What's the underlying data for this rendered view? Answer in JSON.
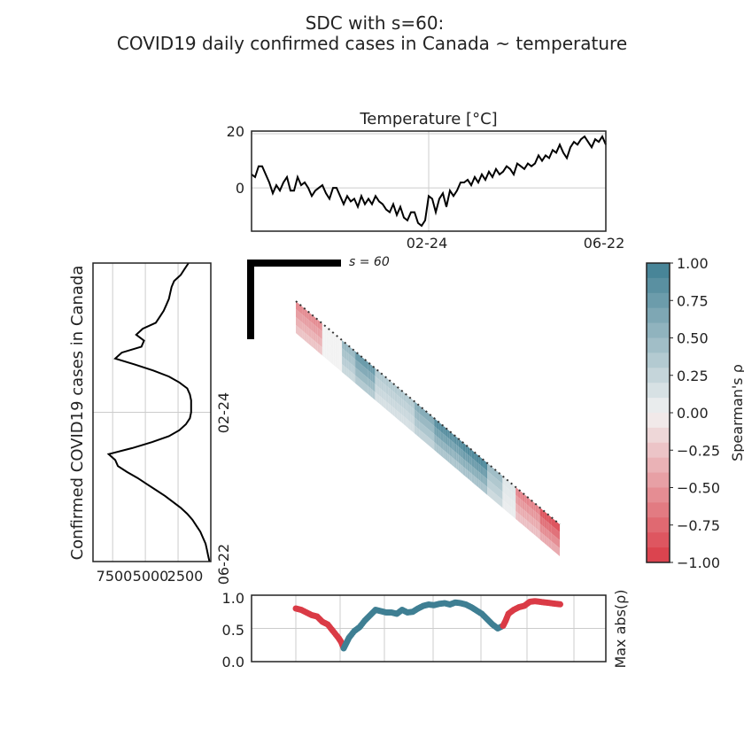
{
  "title_line1": "SDC with s=60:",
  "title_line2": "COVID19 daily confirmed cases in Canada ~ temperature",
  "colors": {
    "positive": "#3f7f93",
    "negative": "#da3b46",
    "neutral": "#f2f2f2",
    "line": "#000000",
    "grid": "#cccccc"
  },
  "s_label": "s = 60",
  "chart_data": [
    {
      "id": "temperature",
      "type": "line",
      "title": "Temperature [°C]",
      "ylim": [
        -16,
        21
      ],
      "yticks": [
        "20",
        "0"
      ],
      "ytick_values": [
        20,
        0
      ],
      "xticks": [
        "02-24",
        "06-22"
      ],
      "xtick_values": [
        0.5,
        1.0
      ],
      "x": [
        0,
        0.01,
        0.02,
        0.03,
        0.04,
        0.05,
        0.06,
        0.07,
        0.08,
        0.09,
        0.1,
        0.11,
        0.12,
        0.13,
        0.14,
        0.15,
        0.16,
        0.17,
        0.18,
        0.19,
        0.2,
        0.21,
        0.22,
        0.23,
        0.24,
        0.25,
        0.26,
        0.27,
        0.28,
        0.29,
        0.3,
        0.31,
        0.32,
        0.33,
        0.34,
        0.35,
        0.36,
        0.37,
        0.38,
        0.39,
        0.4,
        0.41,
        0.42,
        0.43,
        0.44,
        0.45,
        0.46,
        0.47,
        0.48,
        0.49,
        0.5,
        0.51,
        0.52,
        0.53,
        0.54,
        0.55,
        0.56,
        0.57,
        0.58,
        0.59,
        0.6,
        0.61,
        0.62,
        0.63,
        0.64,
        0.65,
        0.66,
        0.67,
        0.68,
        0.69,
        0.7,
        0.71,
        0.72,
        0.73,
        0.74,
        0.75,
        0.76,
        0.77,
        0.78,
        0.79,
        0.8,
        0.81,
        0.82,
        0.83,
        0.84,
        0.85,
        0.86,
        0.87,
        0.88,
        0.89,
        0.9,
        0.91,
        0.92,
        0.93,
        0.94,
        0.95,
        0.96,
        0.97,
        0.98,
        0.99,
        1.0
      ],
      "values": [
        5,
        4,
        8,
        8,
        5,
        2,
        -2,
        1,
        -1,
        2,
        4,
        -1,
        -1,
        4,
        1,
        2,
        0,
        -3,
        -1,
        0,
        1,
        -2,
        -4,
        0,
        0,
        -3,
        -6,
        -3,
        -5,
        -4,
        -7,
        -3,
        -6,
        -4,
        -6,
        -3,
        -5,
        -6,
        -8,
        -9,
        -6,
        -10,
        -7,
        -11,
        -12,
        -9,
        -9,
        -13,
        -14,
        -12,
        -3,
        -4,
        -9,
        -4,
        -2,
        -7,
        -1,
        -3,
        -1,
        2,
        2,
        3,
        1,
        4,
        2,
        5,
        3,
        6,
        4,
        7,
        5,
        6,
        8,
        7,
        5,
        9,
        8,
        7,
        9,
        8,
        9,
        12,
        10,
        12,
        11,
        14,
        13,
        16,
        13,
        11,
        15,
        17,
        16,
        18,
        19,
        17,
        15,
        18,
        17,
        19,
        16
      ],
      "series": [
        {
          "name": "",
          "color": "#000000"
        }
      ]
    },
    {
      "id": "cases",
      "type": "line",
      "orientation": "vertical",
      "ylabel": "Confirmed COVID19 cases in Canada",
      "xticks": [
        "7500",
        "5000",
        "2500"
      ],
      "xtick_values": [
        7500,
        5000,
        2500
      ],
      "xlim": [
        9000,
        0
      ],
      "yticks": [
        "02-24",
        "06-22"
      ],
      "t": [
        0,
        0.02,
        0.04,
        0.06,
        0.08,
        0.1,
        0.12,
        0.14,
        0.16,
        0.18,
        0.2,
        0.22,
        0.24,
        0.26,
        0.28,
        0.3,
        0.32,
        0.34,
        0.36,
        0.38,
        0.4,
        0.42,
        0.44,
        0.46,
        0.48,
        0.5,
        0.52,
        0.54,
        0.56,
        0.58,
        0.6,
        0.62,
        0.64,
        0.66,
        0.68,
        0.7,
        0.72,
        0.74,
        0.76,
        0.78,
        0.8,
        0.82,
        0.84,
        0.86,
        0.88,
        0.9,
        0.92,
        0.94,
        0.96,
        0.98,
        1.0
      ],
      "values": [
        1700,
        2000,
        2300,
        2800,
        3000,
        3100,
        3200,
        3400,
        3600,
        3900,
        4200,
        5200,
        5700,
        5100,
        5300,
        6800,
        7300,
        5800,
        4400,
        3200,
        2400,
        1800,
        1600,
        1500,
        1500,
        1500,
        1600,
        1900,
        2400,
        3200,
        4500,
        6000,
        7800,
        7300,
        7100,
        6400,
        5600,
        4900,
        4200,
        3500,
        2900,
        2300,
        1800,
        1400,
        1100,
        800,
        600,
        400,
        300,
        200,
        100
      ],
      "series": [
        {
          "name": "",
          "color": "#000000"
        }
      ]
    },
    {
      "id": "colorbar",
      "type": "colorbar",
      "label": "Spearman's ρ",
      "ticks": [
        "1.00",
        "0.75",
        "0.50",
        "0.25",
        "0.00",
        "−0.25",
        "−0.50",
        "−0.75",
        "−1.00"
      ],
      "tick_values": [
        1,
        0.75,
        0.5,
        0.25,
        0,
        -0.25,
        -0.5,
        -0.75,
        -1
      ],
      "ylim": [
        -1,
        1
      ]
    },
    {
      "id": "sdc_heatmap",
      "type": "heatmap",
      "segments": [
        {
          "start": 0.0,
          "end": 0.1,
          "rho": -0.55
        },
        {
          "start": 0.1,
          "end": 0.17,
          "rho": 0.0
        },
        {
          "start": 0.17,
          "end": 0.22,
          "rho": 0.5
        },
        {
          "start": 0.22,
          "end": 0.3,
          "rho": 0.75
        },
        {
          "start": 0.3,
          "end": 0.45,
          "rho": 0.35
        },
        {
          "start": 0.45,
          "end": 0.52,
          "rho": 0.6
        },
        {
          "start": 0.52,
          "end": 0.62,
          "rho": 0.85
        },
        {
          "start": 0.62,
          "end": 0.72,
          "rho": 0.9
        },
        {
          "start": 0.72,
          "end": 0.78,
          "rho": 0.45
        },
        {
          "start": 0.78,
          "end": 0.83,
          "rho": 0.1
        },
        {
          "start": 0.83,
          "end": 0.92,
          "rho": -0.6
        },
        {
          "start": 0.92,
          "end": 1.0,
          "rho": -0.85
        }
      ]
    },
    {
      "id": "max_abs",
      "type": "scatter",
      "ylabel": "Max abs(ρ)",
      "ylim": [
        0,
        1
      ],
      "yticks": [
        "1.0",
        "0.5",
        "0.0"
      ],
      "ytick_values": [
        1.0,
        0.5,
        0.0
      ],
      "x": [
        0.0,
        0.02,
        0.04,
        0.06,
        0.08,
        0.1,
        0.12,
        0.14,
        0.16,
        0.17,
        0.18,
        0.19,
        0.2,
        0.22,
        0.24,
        0.26,
        0.28,
        0.3,
        0.32,
        0.34,
        0.36,
        0.38,
        0.4,
        0.42,
        0.44,
        0.46,
        0.48,
        0.5,
        0.52,
        0.54,
        0.56,
        0.58,
        0.6,
        0.62,
        0.64,
        0.66,
        0.68,
        0.7,
        0.72,
        0.74,
        0.76,
        0.78,
        0.79,
        0.8,
        0.82,
        0.84,
        0.86,
        0.88,
        0.9,
        0.92,
        0.94,
        0.96,
        0.98,
        1.0
      ],
      "values": [
        0.8,
        0.78,
        0.74,
        0.7,
        0.68,
        0.6,
        0.56,
        0.46,
        0.36,
        0.3,
        0.2,
        0.28,
        0.36,
        0.46,
        0.52,
        0.62,
        0.7,
        0.78,
        0.76,
        0.74,
        0.74,
        0.72,
        0.78,
        0.74,
        0.75,
        0.8,
        0.84,
        0.86,
        0.85,
        0.87,
        0.88,
        0.86,
        0.89,
        0.88,
        0.86,
        0.82,
        0.77,
        0.72,
        0.64,
        0.56,
        0.5,
        0.54,
        0.62,
        0.72,
        0.78,
        0.82,
        0.84,
        0.9,
        0.91,
        0.9,
        0.89,
        0.88,
        0.87,
        0.86
      ],
      "colors": [
        "#da3b46",
        "#da3b46",
        "#da3b46",
        "#da3b46",
        "#da3b46",
        "#da3b46",
        "#da3b46",
        "#da3b46",
        "#da3b46",
        "#da3b46",
        "#3f7f93",
        "#3f7f93",
        "#3f7f93",
        "#3f7f93",
        "#3f7f93",
        "#3f7f93",
        "#3f7f93",
        "#3f7f93",
        "#3f7f93",
        "#3f7f93",
        "#3f7f93",
        "#3f7f93",
        "#3f7f93",
        "#3f7f93",
        "#3f7f93",
        "#3f7f93",
        "#3f7f93",
        "#3f7f93",
        "#3f7f93",
        "#3f7f93",
        "#3f7f93",
        "#3f7f93",
        "#3f7f93",
        "#3f7f93",
        "#3f7f93",
        "#3f7f93",
        "#3f7f93",
        "#3f7f93",
        "#3f7f93",
        "#3f7f93",
        "#3f7f93",
        "#da3b46",
        "#da3b46",
        "#da3b46",
        "#da3b46",
        "#da3b46",
        "#da3b46",
        "#da3b46",
        "#da3b46",
        "#da3b46",
        "#da3b46",
        "#da3b46",
        "#da3b46",
        "#da3b46"
      ]
    }
  ]
}
